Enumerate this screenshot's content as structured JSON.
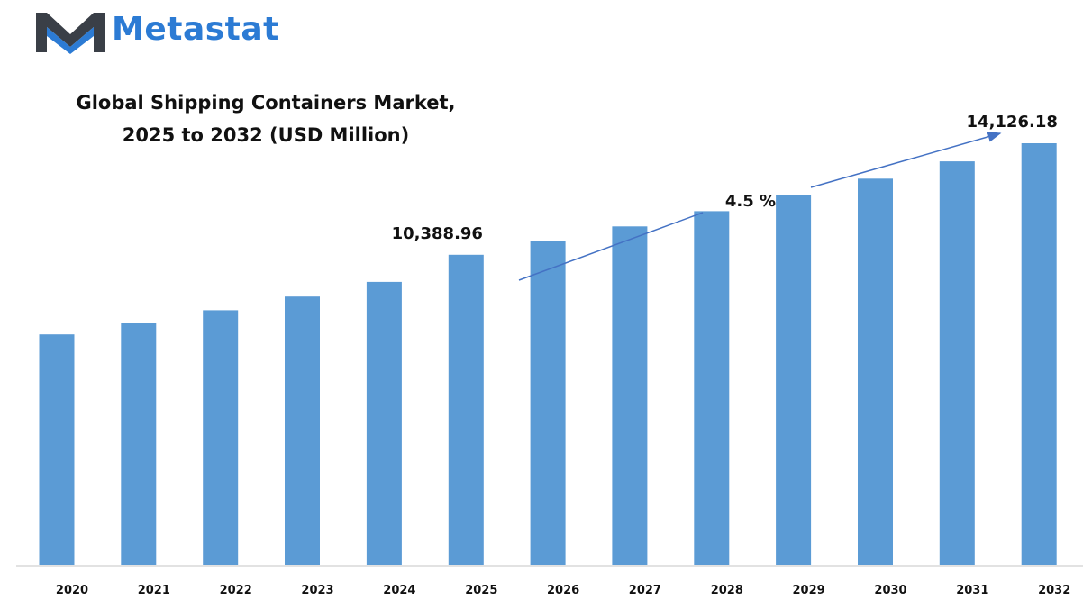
{
  "brand": {
    "name": "Metastat",
    "colors": {
      "dark": "#3a3f47",
      "blue": "#2c7bd4"
    }
  },
  "chart_data": {
    "type": "bar",
    "title": "Global Shipping Containers Market, 2025 to 2032 (USD Million)",
    "title_lines": [
      "Global Shipping Containers Market,",
      "2025 to 2032 (USD Million)"
    ],
    "categories": [
      "2020",
      "2021",
      "2022",
      "2023",
      "2024",
      "2025",
      "2026",
      "2027",
      "2028",
      "2029",
      "2030",
      "2031",
      "2032"
    ],
    "series": [
      {
        "values": [
          7720,
          8100,
          8530,
          8990,
          9480,
          10388.96,
          10850,
          11340,
          11850,
          12380,
          12940,
          13520,
          14126.18
        ]
      }
    ],
    "data_labels": {
      "2025": "10,388.96",
      "2032": "14,126.18"
    },
    "annotations": [
      {
        "text": "4.5 %",
        "type": "growth-arrow",
        "from": "2025",
        "to": "2032"
      }
    ],
    "colors": {
      "bar": "#5b9bd5",
      "arrow": "#4472c4"
    },
    "ylim": [
      0,
      15000
    ],
    "grid": false,
    "legend": "none",
    "xlabel": "",
    "ylabel": ""
  }
}
